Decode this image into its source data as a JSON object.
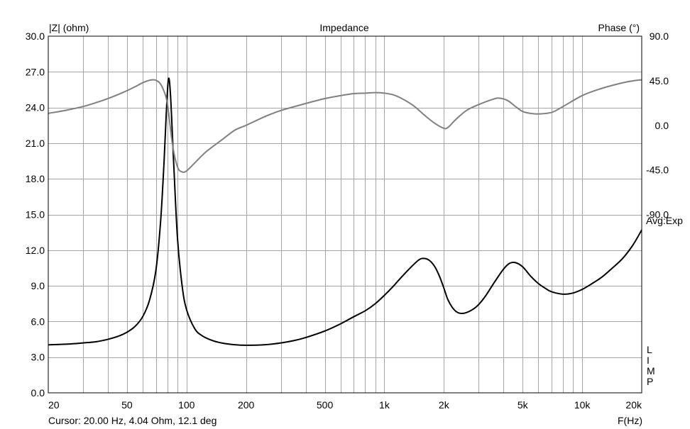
{
  "chart_data": {
    "type": "line",
    "title": "Impedance",
    "left_axis_label": "|Z| (ohm)",
    "right_axis_label": "Phase (°)",
    "x_axis_label": "F(Hz)",
    "x_scale": "log",
    "xlim": [
      20,
      20000
    ],
    "ylim_left": [
      0,
      30
    ],
    "ylim_right": [
      -270,
      90
    ],
    "grid": true,
    "x_tick_labels": [
      {
        "value": 20,
        "label": "20"
      },
      {
        "value": 50,
        "label": "50"
      },
      {
        "value": 100,
        "label": "100"
      },
      {
        "value": 200,
        "label": "200"
      },
      {
        "value": 500,
        "label": "500"
      },
      {
        "value": 1000,
        "label": "1k"
      },
      {
        "value": 2000,
        "label": "2k"
      },
      {
        "value": 5000,
        "label": "5k"
      },
      {
        "value": 10000,
        "label": "10k"
      },
      {
        "value": 20000,
        "label": "20k"
      }
    ],
    "left_tick_labels": [
      {
        "value": 0,
        "label": "0.0"
      },
      {
        "value": 3,
        "label": "3.0"
      },
      {
        "value": 6,
        "label": "6.0"
      },
      {
        "value": 9,
        "label": "9.0"
      },
      {
        "value": 12,
        "label": "12.0"
      },
      {
        "value": 15,
        "label": "15.0"
      },
      {
        "value": 18,
        "label": "18.0"
      },
      {
        "value": 21,
        "label": "21.0"
      },
      {
        "value": 24,
        "label": "24.0"
      },
      {
        "value": 27,
        "label": "27.0"
      },
      {
        "value": 30,
        "label": "30.0"
      }
    ],
    "right_tick_labels": [
      {
        "value": 90,
        "label": "90.0"
      },
      {
        "value": 45,
        "label": "45.0"
      },
      {
        "value": 0,
        "label": "0.0"
      },
      {
        "value": -45,
        "label": "-45.0"
      },
      {
        "value": -90,
        "label": "-90.0"
      }
    ],
    "side_annotation": "Avg:Exp",
    "vertical_label": "LIMP",
    "cursor_text": "Cursor: 20.00 Hz, 4.04 Ohm, 12.1 deg",
    "series": [
      {
        "axis": "left",
        "color": "#000000",
        "points": [
          [
            20,
            4.04
          ],
          [
            25,
            4.1
          ],
          [
            30,
            4.2
          ],
          [
            35,
            4.3
          ],
          [
            40,
            4.5
          ],
          [
            45,
            4.75
          ],
          [
            50,
            5.1
          ],
          [
            55,
            5.6
          ],
          [
            60,
            6.4
          ],
          [
            65,
            7.8
          ],
          [
            70,
            10.3
          ],
          [
            74,
            14.5
          ],
          [
            77,
            19.5
          ],
          [
            79,
            23.5
          ],
          [
            81,
            26.4
          ],
          [
            83,
            25.0
          ],
          [
            86,
            19.5
          ],
          [
            90,
            13.0
          ],
          [
            95,
            9.0
          ],
          [
            100,
            7.0
          ],
          [
            110,
            5.4
          ],
          [
            120,
            4.8
          ],
          [
            135,
            4.4
          ],
          [
            150,
            4.2
          ],
          [
            175,
            4.05
          ],
          [
            200,
            4.0
          ],
          [
            250,
            4.05
          ],
          [
            300,
            4.2
          ],
          [
            350,
            4.4
          ],
          [
            400,
            4.65
          ],
          [
            500,
            5.2
          ],
          [
            600,
            5.8
          ],
          [
            700,
            6.4
          ],
          [
            800,
            6.9
          ],
          [
            900,
            7.5
          ],
          [
            1000,
            8.2
          ],
          [
            1100,
            8.9
          ],
          [
            1200,
            9.6
          ],
          [
            1350,
            10.5
          ],
          [
            1500,
            11.2
          ],
          [
            1600,
            11.3
          ],
          [
            1700,
            11.1
          ],
          [
            1800,
            10.6
          ],
          [
            1900,
            9.8
          ],
          [
            2000,
            8.8
          ],
          [
            2100,
            7.8
          ],
          [
            2250,
            7.0
          ],
          [
            2400,
            6.7
          ],
          [
            2600,
            6.75
          ],
          [
            2900,
            7.2
          ],
          [
            3200,
            8.0
          ],
          [
            3600,
            9.3
          ],
          [
            4000,
            10.4
          ],
          [
            4300,
            10.9
          ],
          [
            4600,
            10.95
          ],
          [
            5000,
            10.6
          ],
          [
            5500,
            9.8
          ],
          [
            6000,
            9.2
          ],
          [
            6500,
            8.8
          ],
          [
            7000,
            8.5
          ],
          [
            8000,
            8.3
          ],
          [
            9000,
            8.4
          ],
          [
            10000,
            8.7
          ],
          [
            11000,
            9.1
          ],
          [
            12500,
            9.7
          ],
          [
            14000,
            10.4
          ],
          [
            16000,
            11.3
          ],
          [
            18000,
            12.4
          ],
          [
            20000,
            13.7
          ]
        ]
      },
      {
        "axis": "right",
        "color": "#808080",
        "points": [
          [
            20,
            12.1
          ],
          [
            25,
            15.5
          ],
          [
            30,
            19
          ],
          [
            35,
            23
          ],
          [
            40,
            27
          ],
          [
            45,
            31
          ],
          [
            50,
            35
          ],
          [
            55,
            39
          ],
          [
            60,
            43
          ],
          [
            65,
            45.5
          ],
          [
            68,
            46
          ],
          [
            70,
            45.5
          ],
          [
            73,
            43
          ],
          [
            76,
            37
          ],
          [
            80,
            22
          ],
          [
            85,
            -20
          ],
          [
            90,
            -42
          ],
          [
            95,
            -47
          ],
          [
            100,
            -46
          ],
          [
            110,
            -38
          ],
          [
            125,
            -27
          ],
          [
            150,
            -15
          ],
          [
            175,
            -5
          ],
          [
            200,
            0
          ],
          [
            250,
            9
          ],
          [
            300,
            15
          ],
          [
            400,
            22
          ],
          [
            500,
            27
          ],
          [
            600,
            30
          ],
          [
            700,
            32
          ],
          [
            800,
            32.5
          ],
          [
            900,
            33
          ],
          [
            1000,
            32.5
          ],
          [
            1100,
            31
          ],
          [
            1200,
            28
          ],
          [
            1400,
            20
          ],
          [
            1600,
            10
          ],
          [
            1800,
            2
          ],
          [
            2000,
            -3
          ],
          [
            2100,
            -2
          ],
          [
            2300,
            6
          ],
          [
            2600,
            15
          ],
          [
            3000,
            21
          ],
          [
            3500,
            26
          ],
          [
            3800,
            27.5
          ],
          [
            4200,
            25
          ],
          [
            4600,
            19
          ],
          [
            5000,
            14
          ],
          [
            5500,
            12
          ],
          [
            6000,
            11.5
          ],
          [
            7000,
            13
          ],
          [
            8000,
            19
          ],
          [
            10000,
            30
          ],
          [
            12000,
            36
          ],
          [
            14000,
            40
          ],
          [
            17000,
            44
          ],
          [
            20000,
            46
          ]
        ]
      }
    ]
  }
}
